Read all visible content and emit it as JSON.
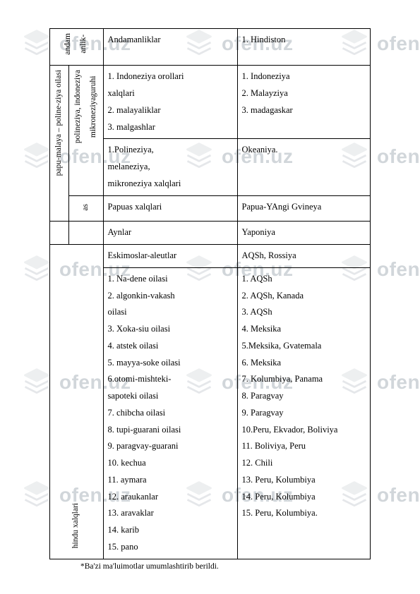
{
  "watermark": {
    "text": "ofen.uz",
    "icon_color": "#c6ccd2",
    "text_color": "#9aa5af"
  },
  "rows": {
    "andaman": {
      "vlabel": "andam\nanlik-",
      "items": "Andamanliklar",
      "places": "1. Hindiston"
    },
    "indoneziya": {
      "vouter": "papu-malaya – poline-ziya oilasi",
      "vinner": "polineziya,  indoneziya\nmikroneziyaguruhi",
      "items": "1. Indoneziya orollari\nxalqlari\n2. malayaliklar\n3. malgashlar",
      "places": "1. Indoneziya\n2. Malayziya\n3. madagaskar"
    },
    "polineziya": {
      "items": "1.Polineziya,\nmelaneziya,\nmikroneziya  xalqlari",
      "places": "Okeaniya."
    },
    "papuas": {
      "vinner": "as",
      "items": "Papuas xalqlari",
      "places": "Papua-YAngi Gvineya"
    },
    "aynlar": {
      "items": "Aynlar",
      "places": "Yaponiya"
    },
    "eskimos": {
      "items": "Eskimoslar-aleutlar",
      "places": "AQSh, Rossiya"
    },
    "hindu": {
      "vlabel": "hindu xalqlari",
      "items": "1. Na-dene oilasi\n2.      algonkin-vakash\noilasi\n3. Xoka-siu oilasi\n4. atstek oilasi\n5. mayya-soke oilasi\n6.otomi-mishteki-\nsapoteki oilasi\n7. chibcha oilasi\n8. tupi-guarani oilasi\n9. paragvay-guarani\n10. kechua\n11. aymara\n12. araukanlar\n13. aravaklar\n14. karib\n15. pano",
      "places": "1. AQSh\n2. AQSh, Kanada\n3. AQSh\n4. Meksika\n5.Meksika, Gvatemala\n6. Meksika\n7. Kolumbiya, Panama\n8. Paragvay\n9. Paragvay\n10.Peru, Ekvador, Boliviya\n11. Boliviya, Peru\n12. Chili\n13. Peru, Kolumbiya\n14. Peru, Kolumbiya\n15. Peru, Kolumbiya."
    }
  },
  "footnote": "*Ba'zi ma'luimotlar umumlashtirib berildi.",
  "colors": {
    "border": "#000000",
    "text": "#000000",
    "bg": "#ffffff"
  }
}
